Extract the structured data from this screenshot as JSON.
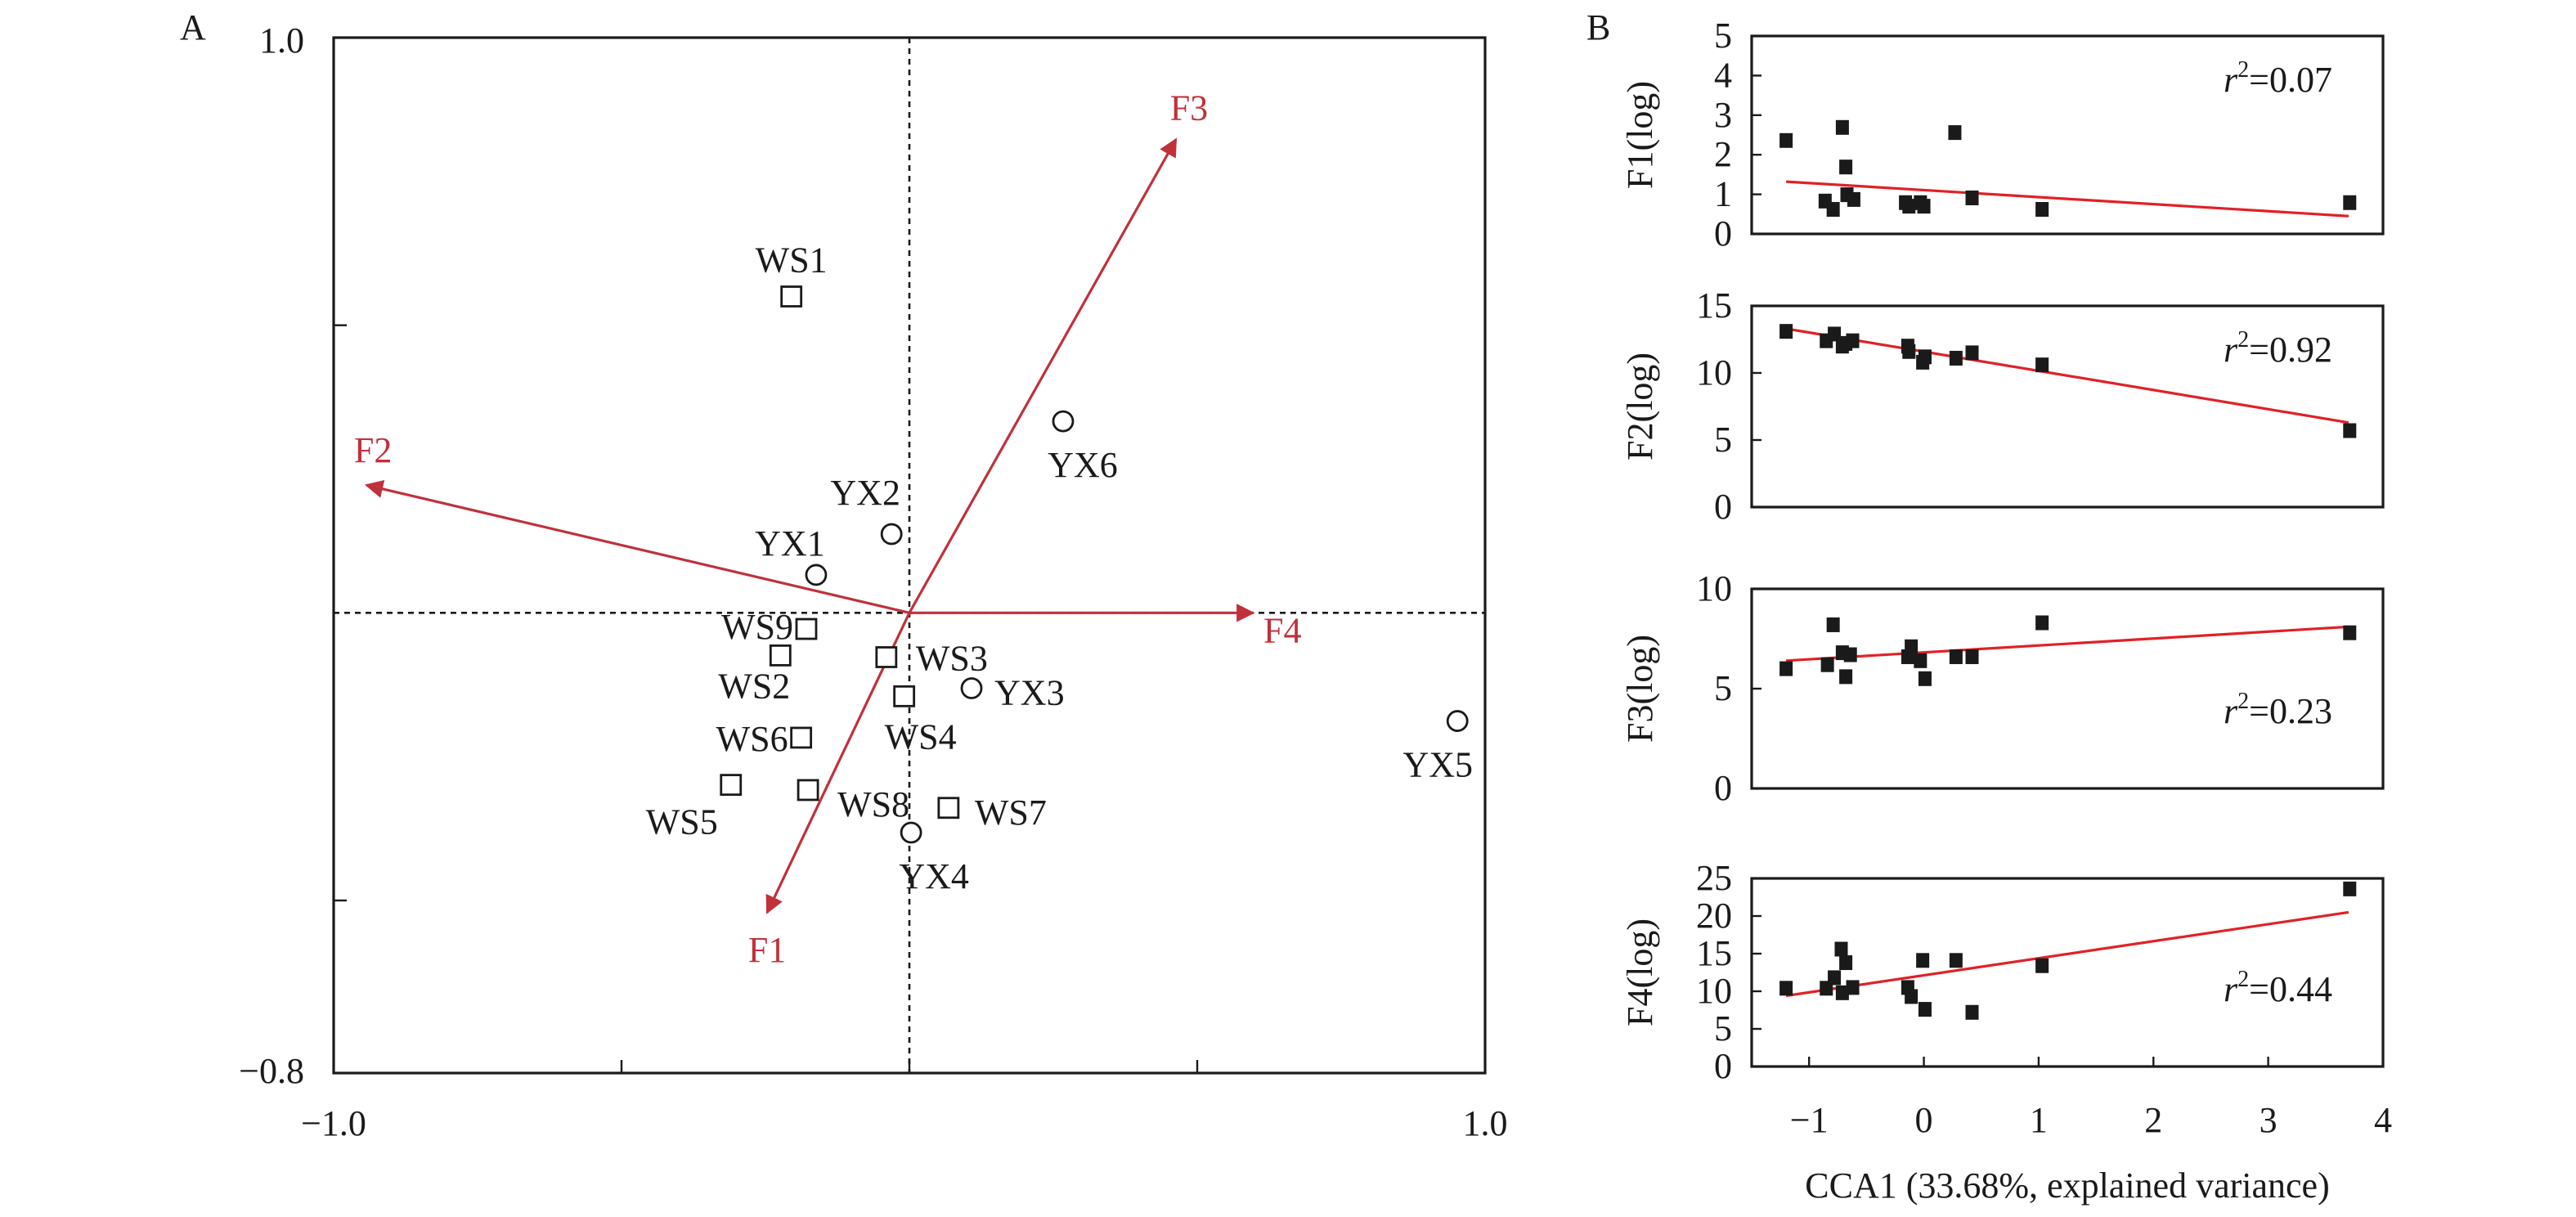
{
  "chart_data": [
    {
      "panel": "A",
      "type": "scatter",
      "title": "",
      "panel_label": "A",
      "xlim": [
        -1.0,
        1.0
      ],
      "ylim": [
        -0.8,
        1.0
      ],
      "x_tick_labels": [
        "-1.0",
        "1.0"
      ],
      "y_tick_labels": [
        "1.0",
        "-0.8"
      ],
      "x_ticks": [
        -0.5,
        0,
        0.5
      ],
      "y_ticks": [
        0.5,
        -0.5
      ],
      "reference_lines": {
        "x": 0,
        "y": 0,
        "style": "dashed"
      },
      "sites": [
        {
          "name": "WS1",
          "shape": "square",
          "x": -0.205,
          "y": 0.55
        },
        {
          "name": "WS2",
          "shape": "square",
          "x": -0.224,
          "y": -0.074
        },
        {
          "name": "WS3",
          "shape": "square",
          "x": -0.04,
          "y": -0.077
        },
        {
          "name": "WS4",
          "shape": "square",
          "x": -0.009,
          "y": -0.145
        },
        {
          "name": "WS5",
          "shape": "square",
          "x": -0.31,
          "y": -0.299
        },
        {
          "name": "WS6",
          "shape": "square",
          "x": -0.188,
          "y": -0.217
        },
        {
          "name": "WS7",
          "shape": "square",
          "x": 0.068,
          "y": -0.339
        },
        {
          "name": "WS8",
          "shape": "square",
          "x": -0.176,
          "y": -0.308
        },
        {
          "name": "WS9",
          "shape": "square",
          "x": -0.179,
          "y": -0.028
        },
        {
          "name": "YX1",
          "shape": "circle",
          "x": -0.162,
          "y": 0.066
        },
        {
          "name": "YX2",
          "shape": "circle",
          "x": -0.031,
          "y": 0.137
        },
        {
          "name": "YX3",
          "shape": "circle",
          "x": 0.108,
          "y": -0.131
        },
        {
          "name": "YX4",
          "shape": "circle",
          "x": 0.003,
          "y": -0.382
        },
        {
          "name": "YX5",
          "shape": "circle",
          "x": 0.952,
          "y": -0.188
        },
        {
          "name": "YX6",
          "shape": "circle",
          "x": 0.267,
          "y": 0.333
        }
      ],
      "vectors": [
        {
          "name": "F1",
          "x": -0.247,
          "y": -0.521
        },
        {
          "name": "F2",
          "x": -0.943,
          "y": 0.222
        },
        {
          "name": "F3",
          "x": 0.463,
          "y": 0.823
        },
        {
          "name": "F4",
          "x": 0.597,
          "y": 0.0
        }
      ],
      "colors": {
        "vector": "#c0313b",
        "marker": "#1a1a1a"
      }
    },
    {
      "panel": "B",
      "type": "scatter",
      "panel_label": "B",
      "xlabel": "CCA1 (33.68%, explained variance)",
      "xlim": [
        -1.5,
        4
      ],
      "x_ticks": [
        -1,
        0,
        1,
        2,
        3,
        4
      ],
      "x_tick_labels": [
        "−1",
        "0",
        "1",
        "2",
        "3",
        "4"
      ],
      "colors": {
        "points": "#1a1a1a",
        "fit": "#e02128"
      },
      "subplots": [
        {
          "ylabel": "F1(log)",
          "ylim": [
            0,
            5
          ],
          "y_ticks": [
            0,
            1,
            2,
            3,
            4,
            5
          ],
          "r2_label": "r",
          "r2_sup": "2",
          "r2_value": "=0.07",
          "r2_pos": "top-right",
          "fit": {
            "x": [
              -1.2,
              3.7
            ],
            "y": [
              1.32,
              0.45
            ]
          },
          "points": [
            [
              -1.2,
              2.36
            ],
            [
              -0.71,
              2.69
            ],
            [
              -0.68,
              1.69
            ],
            [
              -0.86,
              0.83
            ],
            [
              -0.79,
              0.62
            ],
            [
              -0.67,
              0.99
            ],
            [
              -0.61,
              0.87
            ],
            [
              -0.16,
              0.79
            ],
            [
              -0.13,
              0.7
            ],
            [
              -0.03,
              0.79
            ],
            [
              0.0,
              0.7
            ],
            [
              0.27,
              2.56
            ],
            [
              0.42,
              0.91
            ],
            [
              1.03,
              0.62
            ],
            [
              3.71,
              0.79
            ]
          ]
        },
        {
          "ylabel": "F2(log)",
          "ylim": [
            0,
            15
          ],
          "y_ticks": [
            0,
            5,
            10,
            15
          ],
          "r2_label": "r",
          "r2_sup": "2",
          "r2_value": "=0.92",
          "r2_pos": "top-right",
          "fit": {
            "x": [
              -1.2,
              3.7
            ],
            "y": [
              13.3,
              6.3
            ]
          },
          "points": [
            [
              -1.2,
              13.1
            ],
            [
              -0.85,
              12.4
            ],
            [
              -0.78,
              12.9
            ],
            [
              -0.71,
              12.0
            ],
            [
              -0.68,
              12.2
            ],
            [
              -0.62,
              12.4
            ],
            [
              -0.14,
              12.0
            ],
            [
              -0.13,
              11.6
            ],
            [
              -0.01,
              10.8
            ],
            [
              0.01,
              11.2
            ],
            [
              0.28,
              11.1
            ],
            [
              0.42,
              11.5
            ],
            [
              1.03,
              10.6
            ],
            [
              3.71,
              5.7
            ]
          ]
        },
        {
          "ylabel": "F3(log)",
          "ylim": [
            0,
            10
          ],
          "y_ticks": [
            0,
            5,
            10
          ],
          "r2_label": "r",
          "r2_sup": "2",
          "r2_value": "=0.23",
          "r2_pos": "bottom-right",
          "fit": {
            "x": [
              -1.2,
              3.7
            ],
            "y": [
              6.4,
              8.1
            ]
          },
          "points": [
            [
              -1.2,
              6.0
            ],
            [
              -0.84,
              6.2
            ],
            [
              -0.79,
              8.2
            ],
            [
              -0.71,
              6.8
            ],
            [
              -0.68,
              5.6
            ],
            [
              -0.64,
              6.7
            ],
            [
              -0.14,
              6.6
            ],
            [
              -0.11,
              7.1
            ],
            [
              -0.03,
              6.4
            ],
            [
              0.01,
              5.5
            ],
            [
              0.28,
              6.6
            ],
            [
              0.42,
              6.6
            ],
            [
              1.03,
              8.3
            ],
            [
              3.71,
              7.8
            ]
          ]
        },
        {
          "ylabel": "F4(log)",
          "ylim": [
            0,
            25
          ],
          "y_ticks": [
            0,
            5,
            10,
            15,
            20,
            25
          ],
          "r2_label": "r",
          "r2_sup": "2",
          "r2_value": "=0.44",
          "r2_pos": "bottom-right",
          "fit": {
            "x": [
              -1.2,
              3.7
            ],
            "y": [
              9.4,
              20.5
            ]
          },
          "points": [
            [
              -1.2,
              10.4
            ],
            [
              -0.85,
              10.4
            ],
            [
              -0.78,
              11.8
            ],
            [
              -0.72,
              15.6
            ],
            [
              -0.68,
              13.8
            ],
            [
              -0.71,
              9.8
            ],
            [
              -0.62,
              10.5
            ],
            [
              -0.14,
              10.5
            ],
            [
              -0.11,
              9.3
            ],
            [
              -0.01,
              14.1
            ],
            [
              0.01,
              7.6
            ],
            [
              0.28,
              14.1
            ],
            [
              0.42,
              7.2
            ],
            [
              1.03,
              13.4
            ],
            [
              3.71,
              23.6
            ]
          ]
        }
      ]
    }
  ]
}
